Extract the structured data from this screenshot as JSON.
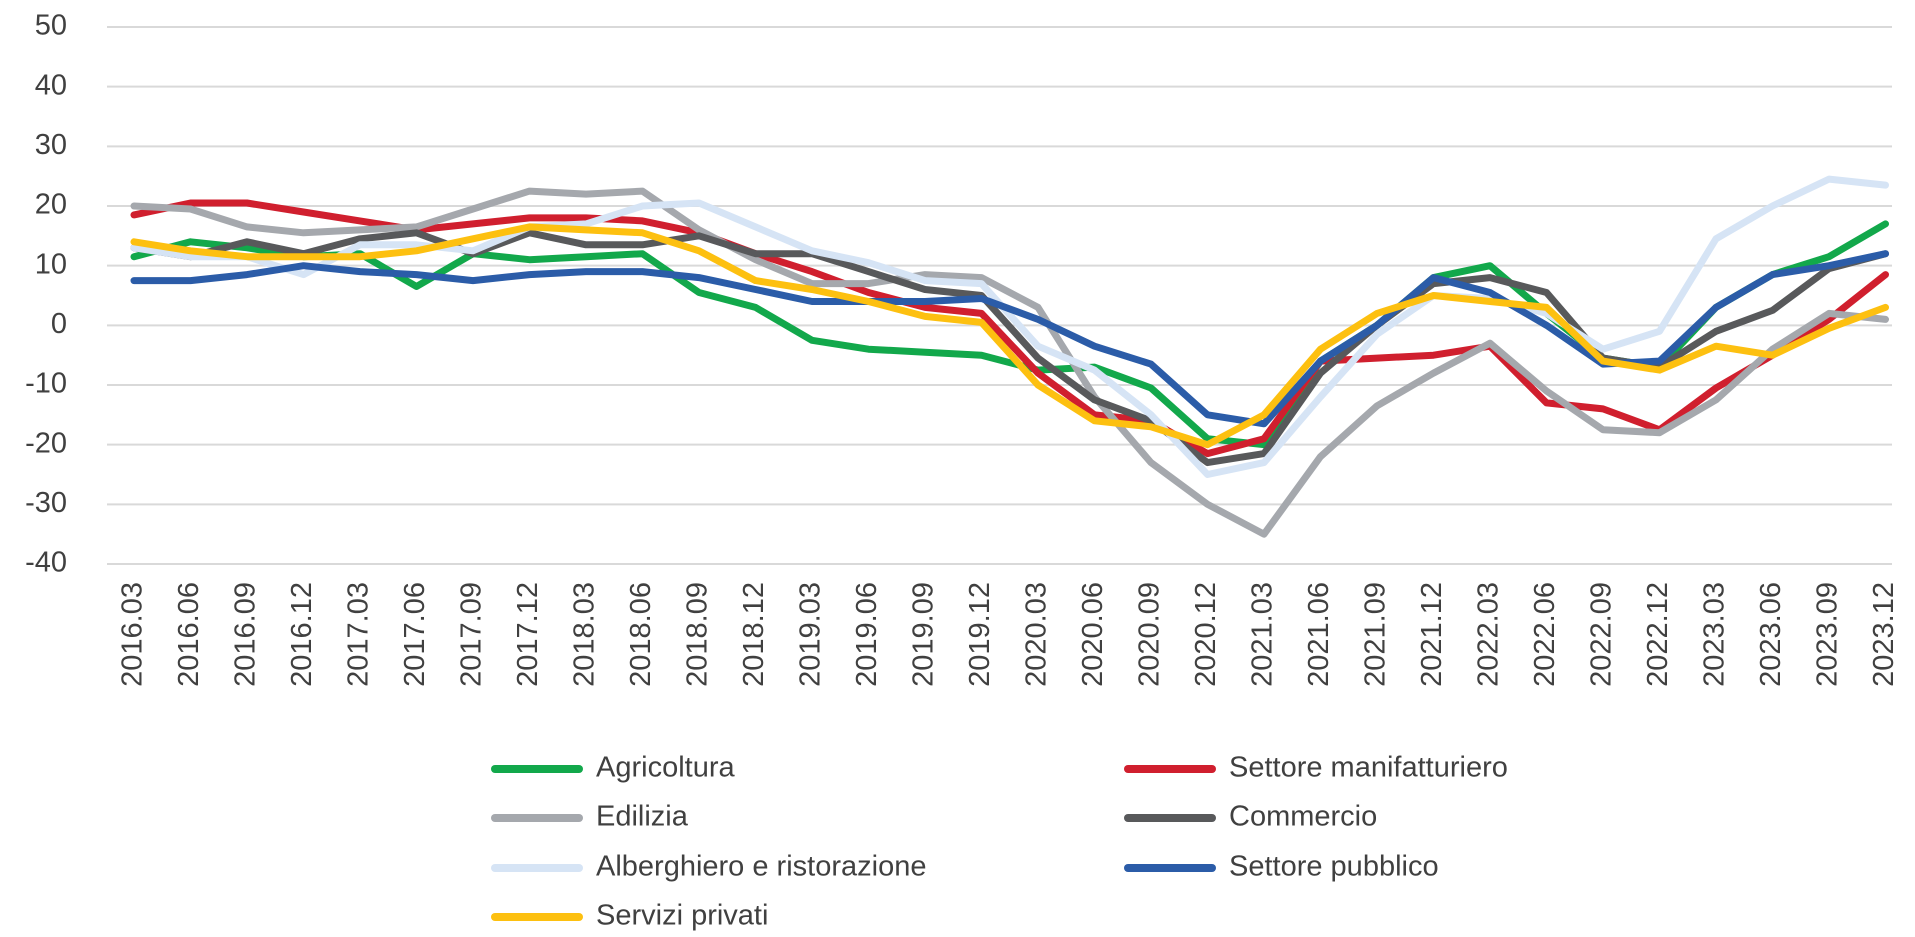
{
  "chart_data": {
    "type": "line",
    "categories": [
      "2016.03",
      "2016.06",
      "2016.09",
      "2016.12",
      "2017.03",
      "2017.06",
      "2017.09",
      "2017.12",
      "2018.03",
      "2018.06",
      "2018.09",
      "2018.12",
      "2019.03",
      "2019.06",
      "2019.09",
      "2019.12",
      "2020.03",
      "2020.06",
      "2020.09",
      "2020.12",
      "2021.03",
      "2021.06",
      "2021.09",
      "2021.12",
      "2022.03",
      "2022.06",
      "2022.09",
      "2022.12",
      "2023.03",
      "2023.06",
      "2023.09",
      "2023.12"
    ],
    "series": [
      {
        "name": "Agricoltura",
        "color": "#12a84b",
        "values": [
          11.5,
          14,
          13,
          11.5,
          12,
          6.5,
          12,
          11,
          11.5,
          12,
          5.5,
          3,
          -2.5,
          -4,
          -4.5,
          -5,
          -7.5,
          -7,
          -10.5,
          -19,
          -20,
          -6,
          0,
          8,
          10,
          2,
          -5.5,
          -7,
          3,
          8.5,
          11.5,
          17
        ]
      },
      {
        "name": "Settore manifatturiero",
        "color": "#d01f2e",
        "values": [
          18.5,
          20.5,
          20.5,
          19,
          17.5,
          16,
          17,
          18,
          18,
          17.5,
          15.5,
          12,
          9,
          5.5,
          3,
          2,
          -8,
          -15,
          -16,
          -21.5,
          -19,
          -6,
          -5.5,
          -5,
          -3.5,
          -13,
          -14,
          -17.5,
          -10.5,
          -5,
          1,
          8.5
        ]
      },
      {
        "name": "Edilizia",
        "color": "#a5a8ad",
        "values": [
          20,
          19.5,
          16.5,
          15.5,
          16,
          16.5,
          19.5,
          22.5,
          22,
          22.5,
          16,
          11,
          7,
          7,
          8.5,
          8,
          3,
          -12,
          -23,
          -30,
          -35,
          -22,
          -13.5,
          -8,
          -3,
          -11,
          -17.5,
          -18,
          -12.5,
          -4,
          2,
          1
        ]
      },
      {
        "name": "Commercio",
        "color": "#58595b",
        "values": [
          13,
          11.5,
          14,
          12,
          14.5,
          15.5,
          12,
          15.5,
          13.5,
          13.5,
          15,
          12,
          12,
          9,
          6,
          5,
          -5.5,
          -12.5,
          -16,
          -23,
          -21.5,
          -8,
          0,
          7,
          8,
          5.5,
          -5.5,
          -7,
          -1,
          2.5,
          9.5,
          12
        ]
      },
      {
        "name": "Alberghiero e ristorazione",
        "color": "#d6e4f5",
        "values": [
          13,
          11.5,
          11.5,
          8.5,
          13.5,
          13.5,
          12.5,
          16.5,
          17,
          20,
          20.5,
          16.5,
          12.5,
          10.5,
          7.5,
          7,
          -3.5,
          -7.5,
          -15,
          -25,
          -23,
          -12,
          -1.5,
          5,
          4.5,
          2,
          -4,
          -1,
          14.5,
          20,
          24.5,
          23.5
        ]
      },
      {
        "name": "Settore pubblico",
        "color": "#2b5ca8",
        "values": [
          7.5,
          7.5,
          8.5,
          10,
          9,
          8.5,
          7.5,
          8.5,
          9,
          9,
          8,
          6,
          4,
          4,
          4,
          4.5,
          1,
          -3.5,
          -6.5,
          -15,
          -16.5,
          -6,
          0,
          8,
          5.5,
          0,
          -6.5,
          -6,
          3,
          8.5,
          10,
          12
        ]
      },
      {
        "name": "Servizi privati",
        "color": "#fdc010",
        "values": [
          14,
          12.5,
          11.5,
          11.5,
          11.5,
          12.5,
          14.5,
          16.5,
          16,
          15.5,
          12.5,
          7.5,
          6,
          4,
          1.5,
          0.5,
          -10,
          -16,
          -17,
          -20,
          -15,
          -4,
          2,
          5,
          4,
          3,
          -6,
          -7.5,
          -3.5,
          -5,
          -0.5,
          3
        ]
      }
    ],
    "ylim": [
      -40,
      50
    ],
    "yticks": [
      -40,
      -30,
      -20,
      -10,
      0,
      10,
      20,
      30,
      40,
      50
    ],
    "grid": true
  }
}
